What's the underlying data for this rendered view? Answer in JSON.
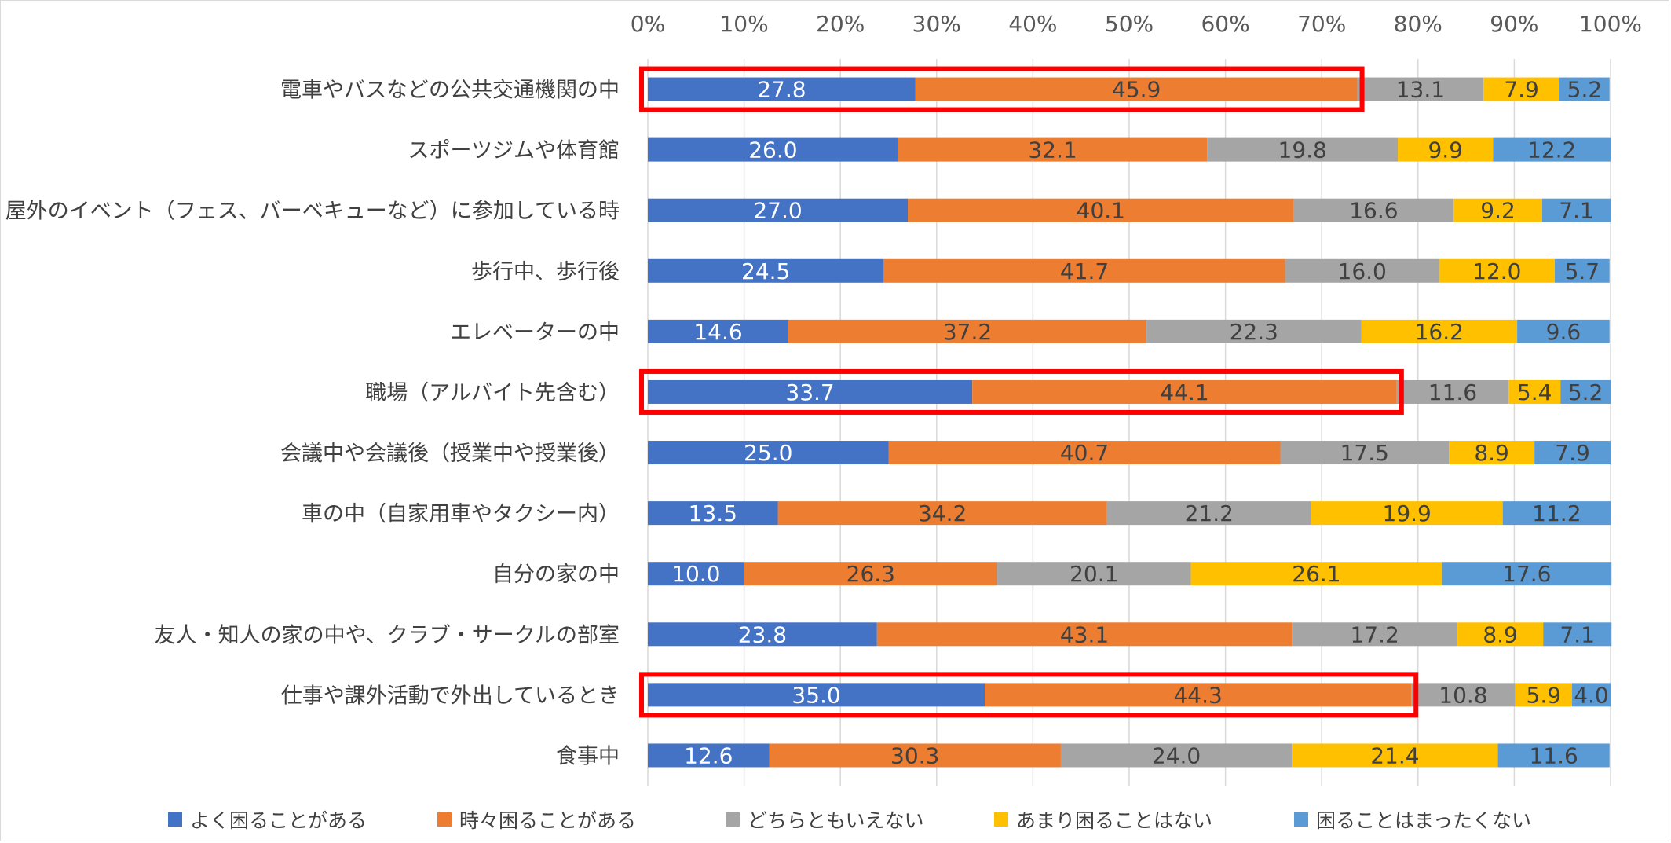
{
  "chart_data": {
    "type": "bar",
    "orientation": "horizontal",
    "stacked": "percent",
    "title": "",
    "xlabel": "",
    "ylabel": "",
    "xlim": [
      0,
      100
    ],
    "x_ticks": [
      "0%",
      "10%",
      "20%",
      "30%",
      "40%",
      "50%",
      "60%",
      "70%",
      "80%",
      "90%",
      "100%"
    ],
    "categories": [
      "電車やバスなどの公共交通機関の中",
      "スポーツジムや体育館",
      "屋外のイベント（フェス、バーベキューなど）に参加している時",
      "歩行中、歩行後",
      "エレベーターの中",
      "職場（アルバイト先含む）",
      "会議中や会議後（授業中や授業後）",
      "車の中（自家用車やタクシー内）",
      "自分の家の中",
      "友人・知人の家の中や、クラブ・サークルの部室",
      "仕事や課外活動で外出しているとき",
      "食事中"
    ],
    "series": [
      {
        "name": "よく困ることがある",
        "color": "#4472c4",
        "label_color": "#ffffff",
        "values": [
          27.8,
          26.0,
          27.0,
          24.5,
          14.6,
          33.7,
          25.0,
          13.5,
          10.0,
          23.8,
          35.0,
          12.6
        ],
        "labels": [
          "27.8",
          "26.0",
          "27.0",
          "24.5",
          "14.6",
          "33.7",
          "25.0",
          "13.5",
          "10.0",
          "23.8",
          "35.0",
          "12.6"
        ]
      },
      {
        "name": "時々困ることがある",
        "color": "#ed7d31",
        "label_color": "#404040",
        "values": [
          45.9,
          32.1,
          40.1,
          41.7,
          37.2,
          44.1,
          40.7,
          34.2,
          26.3,
          43.1,
          44.3,
          30.3
        ],
        "labels": [
          "45.9",
          "32.1",
          "40.1",
          "41.7",
          "37.2",
          "44.1",
          "40.7",
          "34.2",
          "26.3",
          "43.1",
          "44.3",
          "30.3"
        ]
      },
      {
        "name": "どちらともいえない",
        "color": "#a5a5a5",
        "label_color": "#404040",
        "values": [
          13.1,
          19.8,
          16.6,
          16.0,
          22.3,
          11.6,
          17.5,
          21.2,
          20.1,
          17.2,
          10.8,
          24.0
        ],
        "labels": [
          "13.1",
          "19.8",
          "16.6",
          "16.0",
          "22.3",
          "11.6",
          "17.5",
          "21.2",
          "20.1",
          "17.2",
          "10.8",
          "24.0"
        ]
      },
      {
        "name": "あまり困ることはない",
        "color": "#ffc000",
        "label_color": "#404040",
        "values": [
          7.9,
          9.9,
          9.2,
          12.0,
          16.2,
          5.4,
          8.9,
          19.9,
          26.1,
          8.9,
          5.9,
          21.4
        ],
        "labels": [
          "7.9",
          "9.9",
          "9.2",
          "12.0",
          "16.2",
          "5.4",
          "8.9",
          "19.9",
          "26.1",
          "8.9",
          "5.9",
          "21.4"
        ]
      },
      {
        "name": "困ることはまったくない",
        "color": "#5b9bd5",
        "label_color": "#404040",
        "values": [
          5.2,
          12.2,
          7.1,
          5.7,
          9.6,
          5.2,
          7.9,
          11.2,
          17.6,
          7.1,
          4.0,
          11.6
        ],
        "labels": [
          "5.2",
          "12.2",
          "7.1",
          "5.7",
          "9.6",
          "5.2",
          "7.9",
          "11.2",
          "17.6",
          "7.1",
          "4.0",
          "11.6"
        ]
      }
    ],
    "highlights": [
      {
        "category_index": 0,
        "series_count": 2,
        "color": "#ff0000"
      },
      {
        "category_index": 5,
        "series_count": 2,
        "color": "#ff0000"
      },
      {
        "category_index": 10,
        "series_count": 2,
        "color": "#ff0000"
      }
    ],
    "legend_position": "bottom",
    "grid": true
  }
}
